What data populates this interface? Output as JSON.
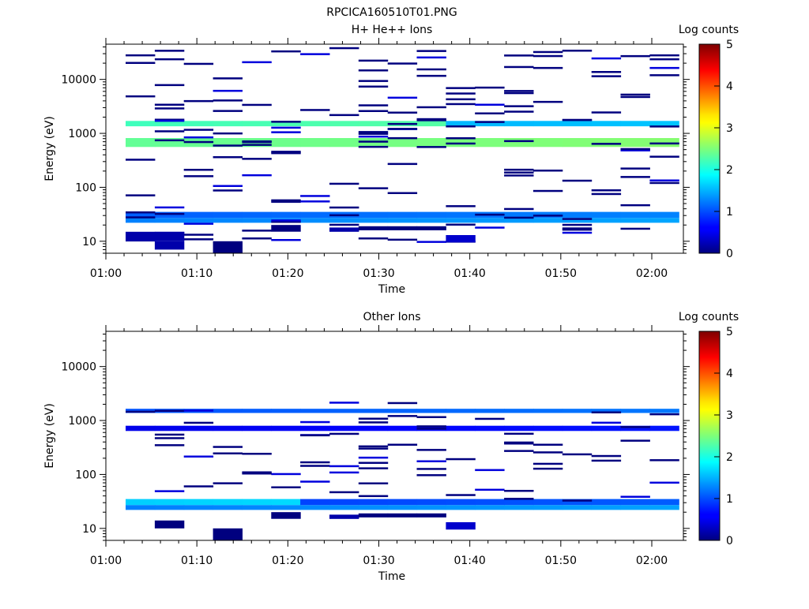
{
  "title": "RPCICA160510T01.PNG",
  "colorbar": {
    "label": "Log counts",
    "ticks": [
      "0",
      "1",
      "2",
      "3",
      "4",
      "5"
    ],
    "range": [
      0,
      5
    ]
  },
  "chart_data": [
    {
      "type": "heatmap",
      "title": "H+ He++ Ions",
      "xlabel": "Time",
      "ylabel": "Energy (eV)",
      "x_ticks": [
        "01:00",
        "01:10",
        "01:20",
        "01:30",
        "01:40",
        "01:50",
        "02:00"
      ],
      "y_ticks": [
        "10",
        "100",
        "1000",
        "10000"
      ],
      "y_scale": "log",
      "ylim": [
        6,
        45000
      ],
      "time_step_minutes": 3.2,
      "bands": [
        {
          "emin": 1350,
          "emax": 1700,
          "value": 1.9
        },
        {
          "emin": 560,
          "emax": 820,
          "value": 2.4
        },
        {
          "emin": 27,
          "emax": 35,
          "value": 1.4
        },
        {
          "emin": 22,
          "emax": 27,
          "value": 1.1
        }
      ]
    },
    {
      "type": "heatmap",
      "title": "Other Ions",
      "xlabel": "Time",
      "ylabel": "Energy (eV)",
      "x_ticks": [
        "01:00",
        "01:10",
        "01:20",
        "01:30",
        "01:40",
        "01:50",
        "02:00"
      ],
      "y_ticks": [
        "10",
        "100",
        "1000",
        "10000"
      ],
      "y_scale": "log",
      "ylim": [
        6,
        45000
      ],
      "time_step_minutes": 3.2,
      "bands": [
        {
          "emin": 1380,
          "emax": 1650,
          "value": 0.8
        },
        {
          "emin": 640,
          "emax": 800,
          "value": 0.6
        },
        {
          "emin": 27,
          "emax": 35,
          "value": 1.3
        },
        {
          "emin": 22,
          "emax": 27,
          "value": 1.2
        }
      ]
    }
  ]
}
